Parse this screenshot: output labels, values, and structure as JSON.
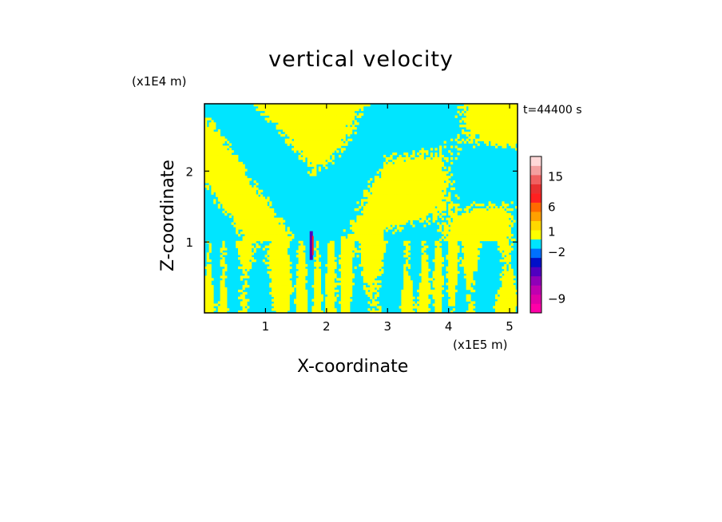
{
  "chart_data": {
    "type": "heatmap",
    "title": "vertical velocity",
    "xlabel": "X-coordinate",
    "ylabel": "Z-coordinate",
    "x_multiplier": "(x1E5 m)",
    "y_multiplier": "(x1E4 m)",
    "time_label": "t=44400 s",
    "xlim": [
      0,
      5.13
    ],
    "ylim": [
      0,
      2.95
    ],
    "xticks": [
      "1",
      "2",
      "3",
      "4",
      "5"
    ],
    "yticks": [
      "1",
      "2"
    ],
    "colors": {
      "cyan": "#00e5ff",
      "yellow": "#ffff00",
      "frame": "#000000"
    },
    "colorbar": {
      "levels": [
        {
          "color": "#ff00a8"
        },
        {
          "color": "#e000a8"
        },
        {
          "color": "#c000b0"
        },
        {
          "color": "#9000b8"
        },
        {
          "color": "#5000c0"
        },
        {
          "color": "#0010c8"
        },
        {
          "color": "#0070ff"
        },
        {
          "color": "#00e5ff"
        },
        {
          "color": "#ffff00"
        },
        {
          "color": "#ffd800"
        },
        {
          "color": "#ffa000"
        },
        {
          "color": "#ff6a00"
        },
        {
          "color": "#ff2020"
        },
        {
          "color": "#e83030"
        },
        {
          "color": "#f06060"
        },
        {
          "color": "#f4a0a0"
        },
        {
          "color": "#ffd8d8"
        }
      ],
      "labels": [
        {
          "text": "-9",
          "at_level": 1.5
        },
        {
          "text": "-2",
          "at_level": 6.6
        },
        {
          "text": "1",
          "at_level": 8.8
        },
        {
          "text": "6",
          "at_level": 11.5
        },
        {
          "text": "15",
          "at_level": 14.8
        }
      ]
    }
  }
}
